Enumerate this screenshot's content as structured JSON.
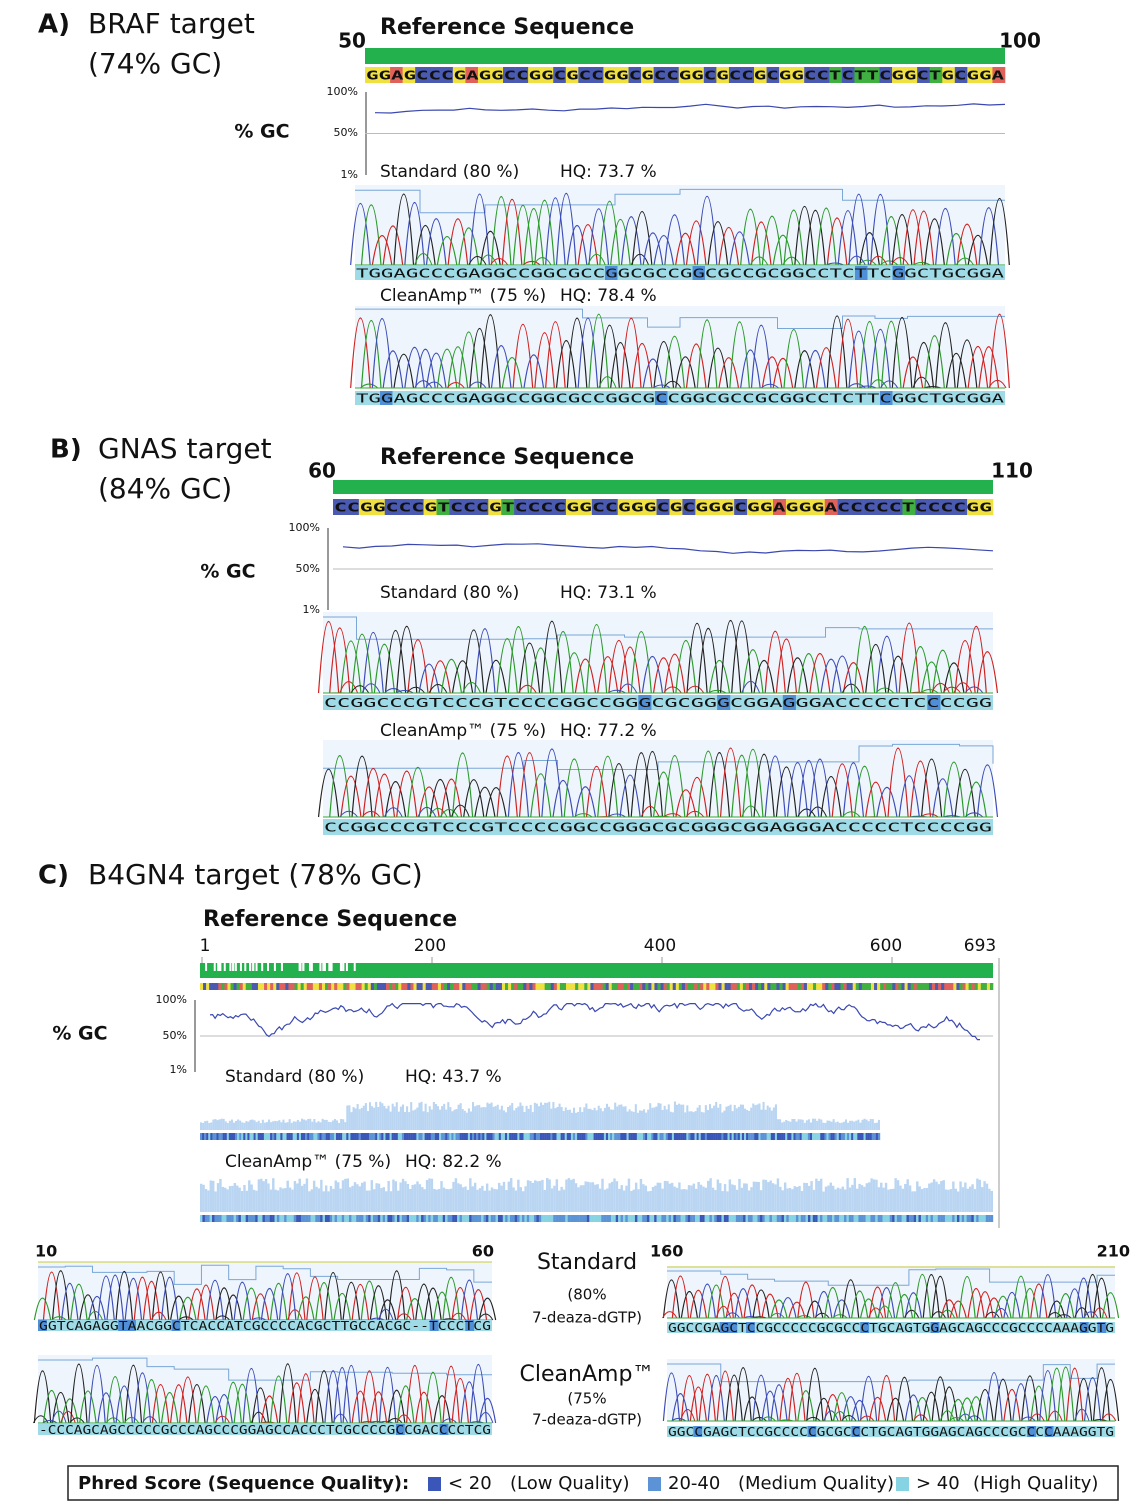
{
  "panels": [
    {
      "label": "A)",
      "title": "BRAF target",
      "subtitle": "(74% GC)",
      "ref_title": "Reference Sequence",
      "ticks": [
        "50",
        "100"
      ],
      "reference": "GGAGCCCGAGGCCGGCGCCGGCGCCGGCGCCGCGGCCTCTTCGGCTGCGGA",
      "gc_label": "% GC",
      "gc_ticks": [
        "100%",
        "50%",
        "1%"
      ],
      "traces": [
        {
          "name": "Standard (80 %)",
          "hq": "HQ: 73.7 %",
          "sequence": "TGGAGCCCGAGGCCGGCGCCGGCGCCGGCGCCGCGGCCTCTTCGGCTGCGGA"
        },
        {
          "name": "CleanAmp™ (75 %)",
          "hq": "HQ: 78.4 %",
          "sequence": "TGGAGCCCGAGGCCGGCGCCGGCGCCGGCGCCGCGGCCTCTTCGGCTGCGGA"
        }
      ]
    },
    {
      "label": "B)",
      "title": "GNAS target",
      "subtitle": "(84% GC)",
      "ref_title": "Reference Sequence",
      "ticks": [
        "60",
        "110"
      ],
      "reference": "CCGGCCCGTCCCGTCCCCGGCCGGGCGCGGGCGGAGGGACCCCCTCCCCGG",
      "gc_label": "% GC",
      "gc_ticks": [
        "100%",
        "50%",
        "1%"
      ],
      "traces": [
        {
          "name": "Standard (80 %)",
          "hq": "HQ: 73.1 %",
          "sequence": "CCGGCCCGTCCCGTCCCCGGCCGGGCGCGGGCGGAGGGACCCCCTCCCCGG"
        },
        {
          "name": "CleanAmp™ (75 %)",
          "hq": "HQ: 77.2 %",
          "sequence": "CCGGCCCGTCCCGTCCCCGGCCGGGCGCGGGCGGAGGGACCCCCTCCCCGG"
        }
      ]
    },
    {
      "label": "C)",
      "title": "B4GN4 target (78% GC)",
      "ref_title": "Reference Sequence",
      "ticks": [
        "1",
        "200",
        "400",
        "600",
        "693"
      ],
      "gc_label": "% GC",
      "gc_ticks": [
        "100%",
        "50%",
        "1%"
      ],
      "traces": [
        {
          "name": "Standard (80 %)",
          "hq": "HQ: 43.7 %"
        },
        {
          "name": "CleanAmp™ (75 %)",
          "hq": "HQ: 82.2 %"
        }
      ]
    }
  ],
  "zoom": {
    "left_range": [
      "10",
      "60"
    ],
    "right_range": [
      "160",
      "210"
    ],
    "rows": [
      {
        "name": "Standard",
        "detail": [
          "(80%",
          "7-deaza-dGTP)"
        ],
        "left_sequence": "GGTCAGAGGTAACGGCTCACCATCGCCCCACGCTTGCCACGC--TCCCTCG",
        "right_sequence": "GGCCGAGCTCCGCCCCCGCGCCCTGCAGTGGAGCAGCCCGCCCCAAAGGTG"
      },
      {
        "name": "CleanAmp™",
        "detail": [
          "(75%",
          "7-deaza-dGTP)"
        ],
        "left_sequence": "-CCCAGCAGCCCCCGCCCAGCCCGGAGCCACCCTCGCCCCGCCGACCCCTCG",
        "right_sequence": "GGCCGAGCTCCGCCCCCGCGCCCTGCAGTGGAGCAGCCCGCCCCAAAGGTG"
      }
    ]
  },
  "legend": {
    "title": "Phred Score (Sequence Quality):",
    "items": [
      {
        "label": "< 20",
        "description": "(Low Quality)",
        "color": "#3a56b8"
      },
      {
        "label": "20-40",
        "description": "(Medium Quality)",
        "color": "#5b93d6"
      },
      {
        "label": "> 40",
        "description": "(High Quality)",
        "color": "#86d3e3"
      }
    ]
  }
}
